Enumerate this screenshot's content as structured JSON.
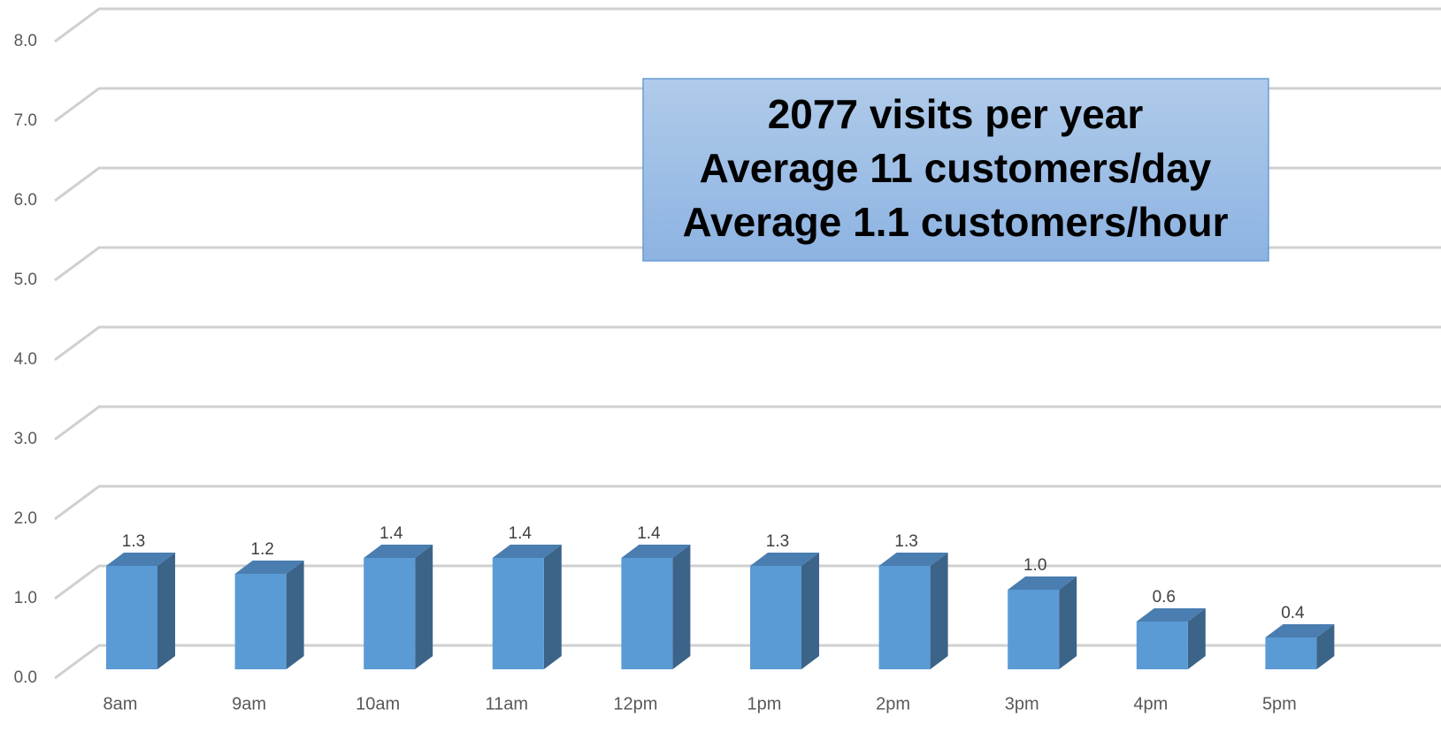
{
  "chart_data": {
    "type": "bar3d",
    "categories": [
      "8am",
      "9am",
      "10am",
      "11am",
      "12pm",
      "1pm",
      "2pm",
      "3pm",
      "4pm",
      "5pm"
    ],
    "values": [
      1.3,
      1.2,
      1.4,
      1.4,
      1.4,
      1.3,
      1.3,
      1.0,
      0.6,
      0.4
    ],
    "value_labels": [
      "1.3",
      "1.2",
      "1.4",
      "1.4",
      "1.4",
      "1.3",
      "1.3",
      "1.0",
      "0.6",
      "0.4"
    ],
    "color": "#5b9bd5",
    "ylim": [
      0,
      8
    ],
    "yticks": [
      {
        "value": 0,
        "label": "0.0"
      },
      {
        "value": 1,
        "label": "1.0"
      },
      {
        "value": 2,
        "label": "2.0"
      },
      {
        "value": 3,
        "label": "3.0"
      },
      {
        "value": 4,
        "label": "4.0"
      },
      {
        "value": 5,
        "label": "5.0"
      },
      {
        "value": 6,
        "label": "6.0"
      },
      {
        "value": 7,
        "label": "7.0"
      },
      {
        "value": 8,
        "label": "8.0"
      }
    ],
    "grid": true,
    "annotation": [
      "2077 visits per year",
      "Average 11 customers/day",
      "Average 1.1 customers/hour"
    ]
  }
}
